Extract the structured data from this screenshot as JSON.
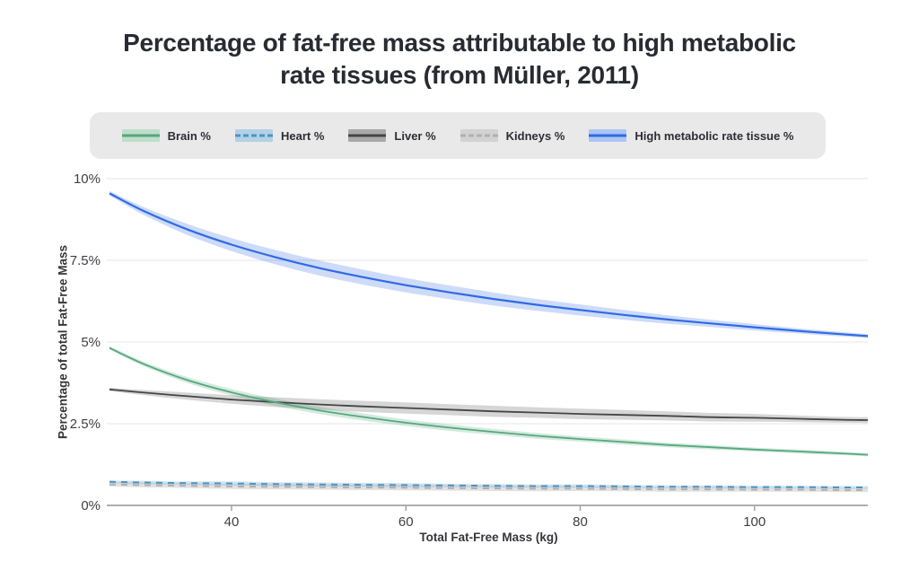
{
  "title": {
    "line1": "Percentage of fat-free mass attributable to high metabolic",
    "line2": "rate tissues (from Müller, 2011)"
  },
  "colors": {
    "background": "#ffffff",
    "legend_background": "#e9e9ea",
    "gridline": "#e9e9e9",
    "axis_line": "#a3a3a3",
    "tick_label": "#3e3f44",
    "title_text": "#292b33"
  },
  "chart_data": {
    "type": "line",
    "title": "Percentage of fat-free mass attributable to high metabolic rate tissues (from Müller, 2011)",
    "xlabel": "Total Fat-Free Mass (kg)",
    "ylabel": "Percentage of total Fat-Free Mass",
    "xlim": [
      26,
      113
    ],
    "ylim": [
      0,
      10
    ],
    "grid": "horizontal",
    "legend_position": "top",
    "x_ticks": [
      40,
      60,
      80,
      100
    ],
    "x_tick_labels": [
      "40",
      "60",
      "80",
      "100"
    ],
    "y_ticks": [
      0,
      2.5,
      5,
      7.5,
      10
    ],
    "y_tick_labels": [
      "0%",
      "2.5%",
      "5%",
      "7.5%",
      "10%"
    ],
    "x": [
      26,
      30,
      35,
      40,
      45,
      50,
      55,
      60,
      65,
      70,
      75,
      80,
      85,
      90,
      95,
      100,
      105,
      110,
      113
    ],
    "series": [
      {
        "name": "Brain %",
        "id": "brain",
        "dashed": false,
        "line_color": "#55a87e",
        "band_color": "rgba(101,178,137,0.28)",
        "swatch_band_color": "#bedecb",
        "line_width": 1.8,
        "values": [
          4.82,
          4.32,
          3.83,
          3.46,
          3.16,
          2.91,
          2.71,
          2.53,
          2.38,
          2.25,
          2.13,
          2.03,
          1.94,
          1.85,
          1.78,
          1.71,
          1.65,
          1.59,
          1.55
        ],
        "ci_halfwidth": [
          0.05,
          0.07,
          0.09,
          0.1,
          0.11,
          0.11,
          0.11,
          0.1,
          0.1,
          0.09,
          0.09,
          0.08,
          0.08,
          0.07,
          0.07,
          0.06,
          0.06,
          0.05,
          0.05
        ]
      },
      {
        "name": "Heart %",
        "id": "heart",
        "dashed": true,
        "line_color": "#4f93c2",
        "band_color": "rgba(91,157,201,0.30)",
        "swatch_band_color": "#b3d1e5",
        "line_width": 2,
        "values": [
          0.72,
          0.7,
          0.68,
          0.67,
          0.65,
          0.64,
          0.63,
          0.62,
          0.61,
          0.6,
          0.59,
          0.59,
          0.58,
          0.57,
          0.57,
          0.56,
          0.56,
          0.55,
          0.55
        ],
        "ci_halfwidth": [
          0.04,
          0.05,
          0.05,
          0.06,
          0.06,
          0.06,
          0.06,
          0.06,
          0.05,
          0.05,
          0.05,
          0.05,
          0.05,
          0.04,
          0.04,
          0.04,
          0.04,
          0.04,
          0.04
        ]
      },
      {
        "name": "Liver %",
        "id": "liver",
        "dashed": false,
        "line_color": "#454545",
        "band_color": "rgba(90,90,90,0.25)",
        "swatch_band_color": "#a9a9a9",
        "line_width": 1.8,
        "values": [
          3.55,
          3.45,
          3.34,
          3.24,
          3.16,
          3.09,
          3.03,
          2.98,
          2.93,
          2.88,
          2.84,
          2.8,
          2.77,
          2.74,
          2.7,
          2.68,
          2.65,
          2.62,
          2.61
        ],
        "ci_halfwidth": [
          0.05,
          0.08,
          0.11,
          0.13,
          0.15,
          0.16,
          0.17,
          0.17,
          0.17,
          0.17,
          0.16,
          0.16,
          0.15,
          0.14,
          0.13,
          0.12,
          0.1,
          0.09,
          0.09
        ]
      },
      {
        "name": "Kidneys %",
        "id": "kidneys",
        "dashed": true,
        "line_color": "#b0b0b0",
        "band_color": "rgba(150,150,150,0.28)",
        "swatch_band_color": "#d2d2d2",
        "line_width": 2,
        "values": [
          0.64,
          0.62,
          0.6,
          0.58,
          0.57,
          0.56,
          0.55,
          0.54,
          0.53,
          0.52,
          0.51,
          0.51,
          0.5,
          0.49,
          0.49,
          0.48,
          0.48,
          0.47,
          0.47
        ],
        "ci_halfwidth": [
          0.06,
          0.07,
          0.07,
          0.08,
          0.08,
          0.08,
          0.08,
          0.08,
          0.08,
          0.08,
          0.08,
          0.07,
          0.07,
          0.07,
          0.07,
          0.06,
          0.06,
          0.06,
          0.06
        ]
      },
      {
        "name": "High metabolic rate tissue %",
        "id": "hmrt",
        "dashed": false,
        "line_color": "#2e6be5",
        "band_color": "rgba(61,116,229,0.26)",
        "swatch_band_color": "#abc6f2",
        "line_width": 2.2,
        "values": [
          9.55,
          9.0,
          8.44,
          7.98,
          7.6,
          7.27,
          6.99,
          6.74,
          6.52,
          6.32,
          6.14,
          5.98,
          5.83,
          5.69,
          5.57,
          5.45,
          5.34,
          5.24,
          5.18
        ],
        "ci_halfwidth": [
          0.07,
          0.12,
          0.17,
          0.2,
          0.22,
          0.23,
          0.23,
          0.22,
          0.21,
          0.2,
          0.18,
          0.17,
          0.15,
          0.13,
          0.11,
          0.1,
          0.08,
          0.07,
          0.06
        ]
      }
    ]
  }
}
